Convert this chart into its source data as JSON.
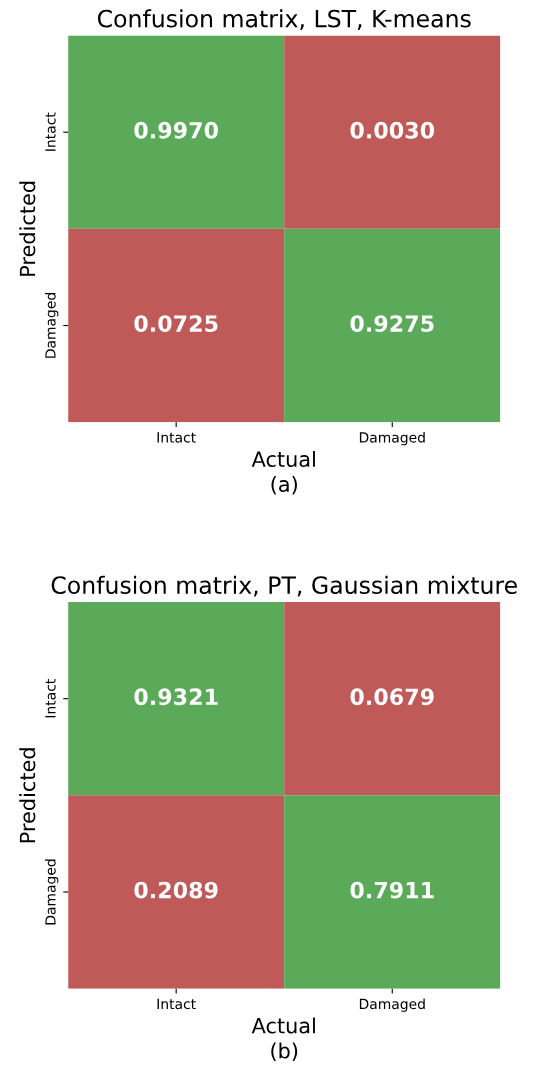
{
  "chart_data": [
    {
      "type": "heatmap",
      "title": "Confusion matrix, LST, K-means",
      "xlabel": "Actual",
      "ylabel": "Predicted",
      "categories": [
        "Intact",
        "Damaged"
      ],
      "y_categories": [
        "Intact",
        "Damaged"
      ],
      "cells": [
        [
          0.997,
          0.003
        ],
        [
          0.0725,
          0.9275
        ]
      ],
      "cell_labels": [
        [
          "0.9970",
          "0.0030"
        ],
        [
          "0.0725",
          "0.9275"
        ]
      ],
      "colors": [
        "#c05a58",
        "#5aaa5a"
      ],
      "annotations": [
        "(a)"
      ]
    },
    {
      "type": "heatmap",
      "title": "Confusion matrix, PT, Gaussian mixture",
      "xlabel": "Actual",
      "ylabel": "Predicted",
      "categories": [
        "Intact",
        "Damaged"
      ],
      "y_categories": [
        "Intact",
        "Damaged"
      ],
      "cells": [
        [
          0.9321,
          0.0679
        ],
        [
          0.2089,
          0.7911
        ]
      ],
      "cell_labels": [
        [
          "0.9321",
          "0.0679"
        ],
        [
          "0.2089",
          "0.7911"
        ]
      ],
      "colors": [
        "#c05a58",
        "#5aaa5a"
      ],
      "annotations": [
        "(b)"
      ]
    }
  ]
}
